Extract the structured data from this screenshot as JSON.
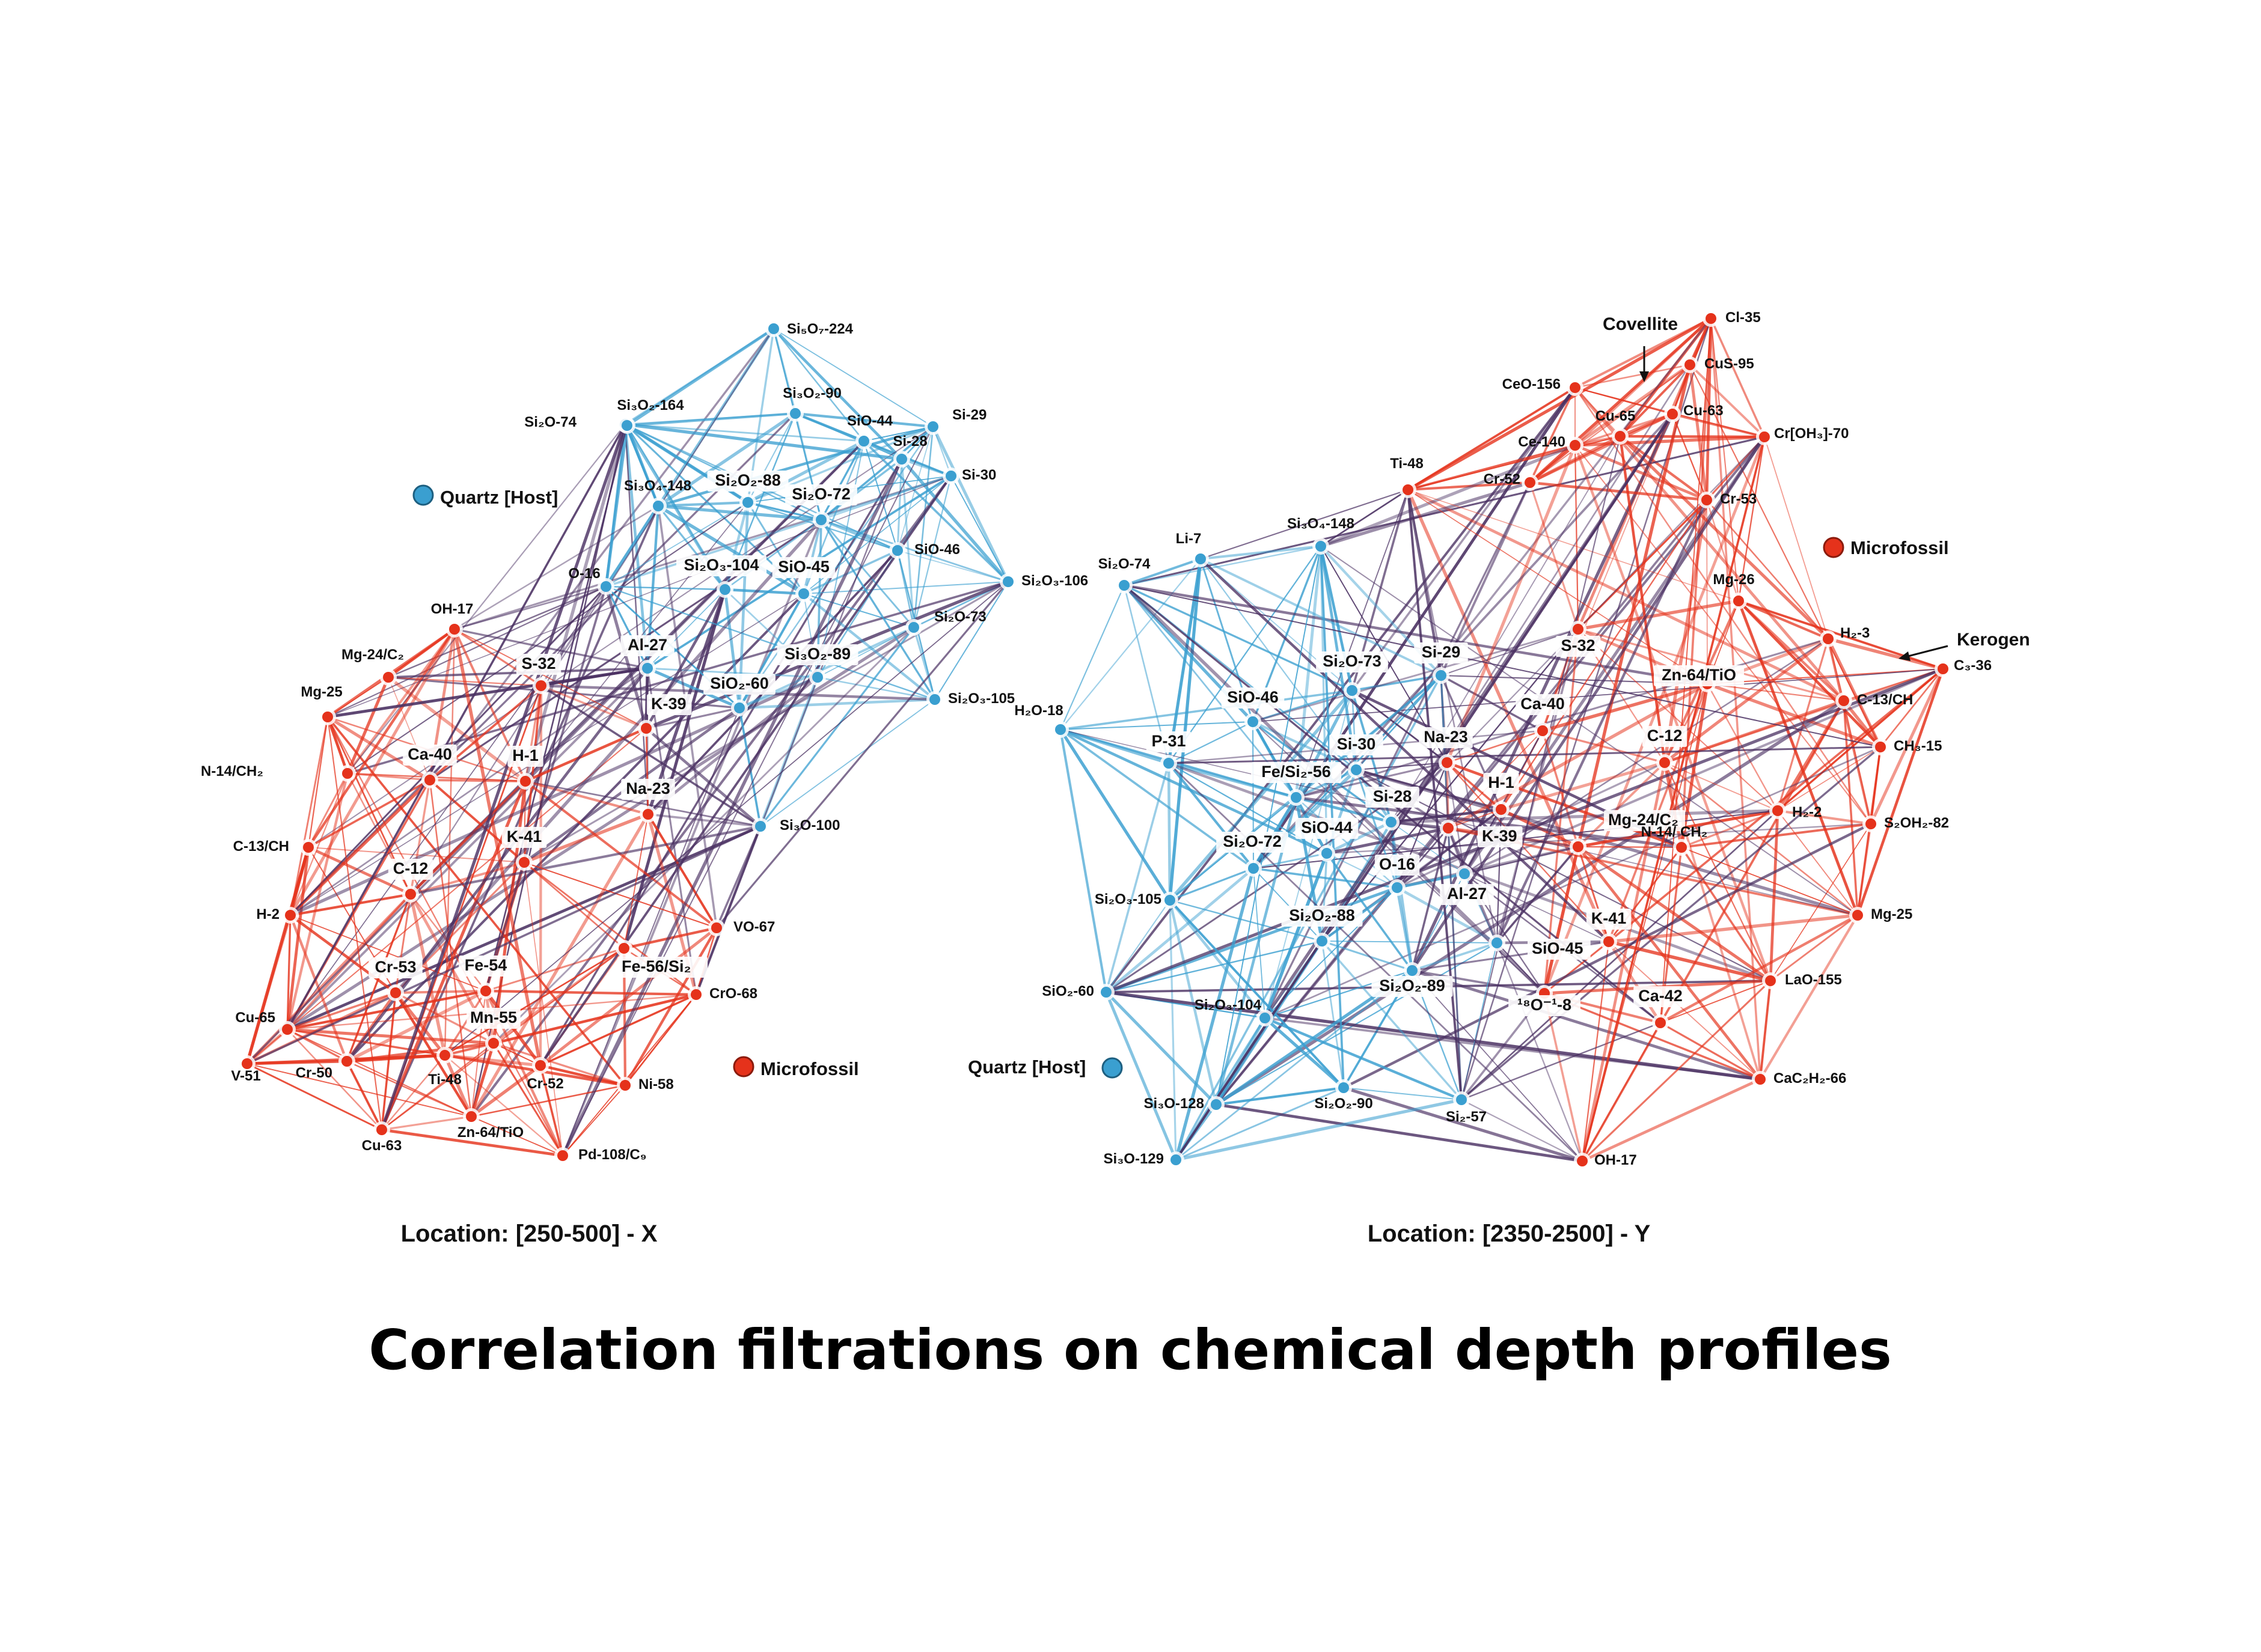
{
  "title": "Correlation filtrations on chemical depth profiles",
  "colors": {
    "quartz": "#3a9fd0",
    "microfossil": "#e5321b",
    "mixed": "#4a3062"
  },
  "networks": [
    {
      "id": "left",
      "caption": "Location: [250-500] - X",
      "legend": [
        {
          "label": "Quartz [Host]",
          "color": "#3a9fd0"
        },
        {
          "label": "Microfossil",
          "color": "#e5321b"
        }
      ],
      "nodes": [
        {
          "label": "Si₅O₇-224",
          "group": "quartz"
        },
        {
          "label": "Si₃O₂-164",
          "group": "quartz"
        },
        {
          "label": "Si₃O₂-90",
          "group": "quartz"
        },
        {
          "label": "Si₂O-74",
          "group": "quartz"
        },
        {
          "label": "SiO-44",
          "group": "quartz"
        },
        {
          "label": "Si-29",
          "group": "quartz"
        },
        {
          "label": "Si-28",
          "group": "quartz"
        },
        {
          "label": "Si-30",
          "group": "quartz"
        },
        {
          "label": "Si₃O₄-148",
          "group": "quartz"
        },
        {
          "label": "Si₂O₂-88",
          "group": "quartz"
        },
        {
          "label": "Si₂O-72",
          "group": "quartz"
        },
        {
          "label": "SiO-46",
          "group": "quartz"
        },
        {
          "label": "Si₂O₃-104",
          "group": "quartz"
        },
        {
          "label": "SiO-45",
          "group": "quartz"
        },
        {
          "label": "Si₂O₃-106",
          "group": "quartz"
        },
        {
          "label": "O-16",
          "group": "quartz"
        },
        {
          "label": "Si₂O-73",
          "group": "quartz"
        },
        {
          "label": "Al-27",
          "group": "quartz"
        },
        {
          "label": "Si₃O₂-89",
          "group": "quartz"
        },
        {
          "label": "SiO₂-60",
          "group": "quartz"
        },
        {
          "label": "Si₂O₃-105",
          "group": "quartz"
        },
        {
          "label": "Si₃O-100",
          "group": "quartz"
        },
        {
          "label": "OH-17",
          "group": "microfossil"
        },
        {
          "label": "Mg-24/C₂",
          "group": "microfossil"
        },
        {
          "label": "S-32",
          "group": "microfossil"
        },
        {
          "label": "Mg-25",
          "group": "microfossil"
        },
        {
          "label": "K-39",
          "group": "microfossil"
        },
        {
          "label": "N-14/CH₂",
          "group": "microfossil"
        },
        {
          "label": "Ca-40",
          "group": "microfossil"
        },
        {
          "label": "H-1",
          "group": "microfossil"
        },
        {
          "label": "Na-23",
          "group": "microfossil"
        },
        {
          "label": "C-13/CH",
          "group": "microfossil"
        },
        {
          "label": "K-41",
          "group": "microfossil"
        },
        {
          "label": "C-12",
          "group": "microfossil"
        },
        {
          "label": "H-2",
          "group": "microfossil"
        },
        {
          "label": "VO-67",
          "group": "microfossil"
        },
        {
          "label": "Cr-53",
          "group": "microfossil"
        },
        {
          "label": "Fe-54",
          "group": "microfossil"
        },
        {
          "label": "Fe-56/Si₂",
          "group": "microfossil"
        },
        {
          "label": "CrO-68",
          "group": "microfossil"
        },
        {
          "label": "Cu-65",
          "group": "microfossil"
        },
        {
          "label": "Mn-55",
          "group": "microfossil"
        },
        {
          "label": "Cr-50",
          "group": "microfossil"
        },
        {
          "label": "Ti-48",
          "group": "microfossil"
        },
        {
          "label": "Cr-52",
          "group": "microfossil"
        },
        {
          "label": "Ni-58",
          "group": "microfossil"
        },
        {
          "label": "V-51",
          "group": "microfossil"
        },
        {
          "label": "Cu-63",
          "group": "microfossil"
        },
        {
          "label": "Zn-64/TiO",
          "group": "microfossil"
        },
        {
          "label": "Pd-108/C₉",
          "group": "microfossil"
        }
      ]
    },
    {
      "id": "right",
      "caption": "Location: [2350-2500] - Y",
      "legend": [
        {
          "label": "Microfossil",
          "color": "#e5321b"
        },
        {
          "label": "Quartz [Host]",
          "color": "#3a9fd0"
        }
      ],
      "annotations": [
        "Covellite",
        "Kerogen"
      ],
      "nodes": [
        {
          "label": "Cl-35",
          "group": "microfossil"
        },
        {
          "label": "CuS-95",
          "group": "microfossil"
        },
        {
          "label": "CeO-156",
          "group": "microfossil"
        },
        {
          "label": "Cu-65",
          "group": "microfossil"
        },
        {
          "label": "Cu-63",
          "group": "microfossil"
        },
        {
          "label": "Cr[OH₃]-70",
          "group": "microfossil"
        },
        {
          "label": "Ce-140",
          "group": "microfossil"
        },
        {
          "label": "Ti-48",
          "group": "microfossil"
        },
        {
          "label": "Cr-52",
          "group": "microfossil"
        },
        {
          "label": "Cr-53",
          "group": "microfossil"
        },
        {
          "label": "Li-7",
          "group": "quartz"
        },
        {
          "label": "Si₃O₄-148",
          "group": "quartz"
        },
        {
          "label": "Si₂O-74",
          "group": "quartz"
        },
        {
          "label": "Mg-26",
          "group": "microfossil"
        },
        {
          "label": "H₂-3",
          "group": "microfossil"
        },
        {
          "label": "Si-29",
          "group": "quartz"
        },
        {
          "label": "S-32",
          "group": "microfossil"
        },
        {
          "label": "Si₂O-73",
          "group": "quartz"
        },
        {
          "label": "C₃-36",
          "group": "microfossil"
        },
        {
          "label": "Zn-64/TiO",
          "group": "microfossil"
        },
        {
          "label": "SiO-46",
          "group": "quartz"
        },
        {
          "label": "Ca-40",
          "group": "microfossil"
        },
        {
          "label": "C-13/CH",
          "group": "microfossil"
        },
        {
          "label": "H₂O-18",
          "group": "quartz"
        },
        {
          "label": "P-31",
          "group": "quartz"
        },
        {
          "label": "Si-30",
          "group": "quartz"
        },
        {
          "label": "Na-23",
          "group": "microfossil"
        },
        {
          "label": "C-12",
          "group": "microfossil"
        },
        {
          "label": "CH₃-15",
          "group": "microfossil"
        },
        {
          "label": "Fe/Si₂-56",
          "group": "quartz"
        },
        {
          "label": "H-1",
          "group": "microfossil"
        },
        {
          "label": "Si-28",
          "group": "quartz"
        },
        {
          "label": "H₂-2",
          "group": "microfossil"
        },
        {
          "label": "Mg-24/C₂",
          "group": "microfossil"
        },
        {
          "label": "S₂OH₂-82",
          "group": "microfossil"
        },
        {
          "label": "Si₂O-72",
          "group": "quartz"
        },
        {
          "label": "SiO-44",
          "group": "quartz"
        },
        {
          "label": "K-39",
          "group": "microfossil"
        },
        {
          "label": "N-14/ CH₂",
          "group": "microfossil"
        },
        {
          "label": "O-16",
          "group": "quartz"
        },
        {
          "label": "Al-27",
          "group": "quartz"
        },
        {
          "label": "Si₂O₃-105",
          "group": "quartz"
        },
        {
          "label": "Mg-25",
          "group": "microfossil"
        },
        {
          "label": "Si₂O₂-88",
          "group": "quartz"
        },
        {
          "label": "K-41",
          "group": "microfossil"
        },
        {
          "label": "SiO-45",
          "group": "quartz"
        },
        {
          "label": "SiO₂-60",
          "group": "quartz"
        },
        {
          "label": "Si₂O₂-89",
          "group": "quartz"
        },
        {
          "label": "Ca-42",
          "group": "microfossil"
        },
        {
          "label": "LaO-155",
          "group": "microfossil"
        },
        {
          "label": "¹⁸O⁻¹-8",
          "group": "microfossil"
        },
        {
          "label": "Si₂O₃-104",
          "group": "quartz"
        },
        {
          "label": "CaC₂H₂-66",
          "group": "microfossil"
        },
        {
          "label": "Si₂O₂-90",
          "group": "quartz"
        },
        {
          "label": "Si₂-57",
          "group": "quartz"
        },
        {
          "label": "Si₃O-128",
          "group": "quartz"
        },
        {
          "label": "OH-17",
          "group": "microfossil"
        },
        {
          "label": "Si₃O-129",
          "group": "quartz"
        }
      ]
    }
  ]
}
